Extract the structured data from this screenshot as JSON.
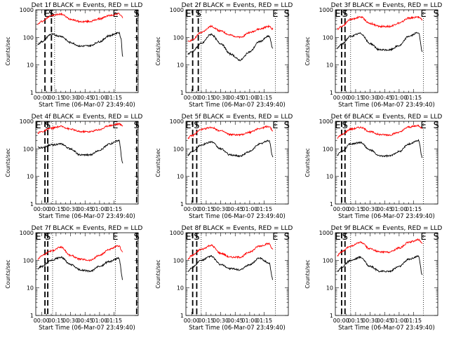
{
  "colors": {
    "events": "#000000",
    "lld": "#ff0000",
    "axis": "#000000"
  },
  "common": {
    "ylabel": "Counts/sec",
    "xlabel": "Start Time (06-Mar-07 23:49:40)",
    "ytick_labels": [
      "1",
      "10",
      "100",
      "1000"
    ],
    "xtick_labels": [
      "00:00",
      "00:15",
      "00:30",
      "00:45",
      "01:00",
      "01:15"
    ],
    "y_scale": "log",
    "ylim": [
      1,
      1000
    ],
    "xlim_minutes_after_2349_40": [
      -6,
      100
    ]
  },
  "chart_data": [
    {
      "type": "line",
      "title": "Det 1f BLACK = Events, RED = LLD",
      "series": [
        {
          "color": "#ff0000",
          "x": [
            -4,
            0,
            10,
            20,
            30,
            40,
            50,
            60,
            70,
            80,
            82,
            84
          ],
          "values": [
            300,
            380,
            620,
            700,
            460,
            370,
            380,
            470,
            620,
            720,
            650,
            500
          ]
        },
        {
          "color": "#000000",
          "x": [
            -4,
            0,
            10,
            20,
            30,
            40,
            50,
            60,
            70,
            80,
            82,
            84
          ],
          "values": [
            55,
            70,
            130,
            110,
            65,
            48,
            50,
            70,
            115,
            150,
            100,
            20
          ]
        }
      ],
      "marker_labels": [
        {
          "text": "E",
          "x": 5.6
        },
        {
          "text": "S",
          "x": 10.2
        },
        {
          "text": "E",
          "x": 76.5
        },
        {
          "text": "S",
          "x": 98.4
        }
      ],
      "dashed_lines_x": [
        3.5,
        10.2,
        98.4
      ],
      "dotted_lines_x": [
        13.5,
        76.5
      ]
    },
    {
      "type": "line",
      "title": "Det 2f BLACK = Events, RED = LLD",
      "series": [
        {
          "color": "#ff0000",
          "x": [
            -4,
            0,
            10,
            20,
            30,
            40,
            50,
            60,
            70,
            80,
            84
          ],
          "values": [
            70,
            80,
            150,
            250,
            170,
            120,
            100,
            150,
            200,
            250,
            200
          ]
        },
        {
          "color": "#000000",
          "x": [
            -4,
            0,
            10,
            20,
            30,
            40,
            50,
            60,
            70,
            80,
            84
          ],
          "values": [
            25,
            30,
            60,
            130,
            60,
            25,
            15,
            30,
            70,
            110,
            40
          ]
        }
      ],
      "marker_labels": [
        {
          "text": "E",
          "x": -3.5
        },
        {
          "text": "S",
          "x": 6.8
        },
        {
          "text": "E",
          "x": 86.5
        },
        {
          "text": "S",
          "x": 98.4
        }
      ],
      "dashed_lines_x": [
        1.0,
        6.8
      ],
      "dotted_lines_x": [
        9.8,
        86.5
      ]
    },
    {
      "type": "line",
      "title": "Det 3f BLACK = Events, RED = LLD",
      "series": [
        {
          "color": "#ff0000",
          "x": [
            -4,
            0,
            10,
            20,
            30,
            40,
            50,
            60,
            70,
            80,
            84
          ],
          "values": [
            200,
            250,
            450,
            550,
            320,
            250,
            250,
            330,
            500,
            550,
            450
          ]
        },
        {
          "color": "#000000",
          "x": [
            -4,
            0,
            10,
            20,
            30,
            40,
            50,
            60,
            70,
            80,
            84
          ],
          "values": [
            40,
            55,
            110,
            140,
            60,
            35,
            35,
            50,
            110,
            150,
            30
          ]
        }
      ],
      "marker_labels": [
        {
          "text": "E",
          "x": -3.5
        },
        {
          "text": "S",
          "x": 4.0
        },
        {
          "text": "E",
          "x": 85.2
        },
        {
          "text": "S",
          "x": 98.4
        }
      ],
      "dashed_lines_x": [
        0.5,
        4.0
      ],
      "dotted_lines_x": [
        9.8,
        85.2
      ]
    },
    {
      "type": "line",
      "title": "Det 4f BLACK = Events, RED = LLD",
      "series": [
        {
          "color": "#ff0000",
          "x": [
            -4,
            0,
            10,
            20,
            30,
            40,
            50,
            60,
            70,
            80,
            84
          ],
          "values": [
            380,
            420,
            560,
            650,
            520,
            420,
            420,
            500,
            700,
            800,
            700
          ]
        },
        {
          "color": "#000000",
          "x": [
            -4,
            0,
            10,
            20,
            30,
            40,
            50,
            60,
            70,
            80,
            84
          ],
          "values": [
            110,
            110,
            140,
            150,
            100,
            60,
            60,
            90,
            150,
            200,
            30
          ]
        }
      ],
      "marker_labels": [
        {
          "text": "E",
          "x": -3.5
        },
        {
          "text": "S",
          "x": 6.4
        },
        {
          "text": "E",
          "x": 76.3
        },
        {
          "text": "S",
          "x": 98.4
        }
      ],
      "dashed_lines_x": [
        3.5,
        6.4,
        98.4
      ],
      "dotted_lines_x": [
        11.4,
        76.3
      ]
    },
    {
      "type": "line",
      "title": "Det 5f BLACK = Events, RED = LLD",
      "series": [
        {
          "color": "#ff0000",
          "x": [
            -4,
            0,
            10,
            20,
            30,
            40,
            50,
            60,
            70,
            80,
            84
          ],
          "values": [
            250,
            300,
            500,
            600,
            450,
            330,
            320,
            400,
            550,
            650,
            450
          ]
        },
        {
          "color": "#000000",
          "x": [
            -4,
            0,
            10,
            20,
            30,
            40,
            50,
            60,
            70,
            80,
            84
          ],
          "values": [
            60,
            80,
            140,
            180,
            100,
            60,
            55,
            80,
            150,
            200,
            50
          ]
        }
      ],
      "marker_labels": [
        {
          "text": "E",
          "x": -3.5
        },
        {
          "text": "S",
          "x": 5.2
        },
        {
          "text": "E",
          "x": 86.5
        },
        {
          "text": "S",
          "x": 98.4
        }
      ],
      "dashed_lines_x": [
        1.0,
        5.2
      ],
      "dotted_lines_x": [
        9.8,
        86.5
      ]
    },
    {
      "type": "line",
      "title": "Det 6f BLACK = Events, RED = LLD",
      "series": [
        {
          "color": "#ff0000",
          "x": [
            -4,
            0,
            10,
            20,
            30,
            40,
            50,
            60,
            70,
            80,
            84
          ],
          "values": [
            250,
            320,
            520,
            600,
            420,
            330,
            320,
            400,
            620,
            700,
            550
          ]
        },
        {
          "color": "#000000",
          "x": [
            -4,
            0,
            10,
            20,
            30,
            40,
            50,
            60,
            70,
            80,
            84
          ],
          "values": [
            60,
            80,
            150,
            170,
            90,
            55,
            55,
            80,
            150,
            200,
            50
          ]
        }
      ],
      "marker_labels": [
        {
          "text": "E",
          "x": -3.5
        },
        {
          "text": "S",
          "x": 4.0
        },
        {
          "text": "E",
          "x": 85.2
        },
        {
          "text": "S",
          "x": 98.4
        }
      ],
      "dashed_lines_x": [
        0.5,
        4.0
      ],
      "dotted_lines_x": [
        9.8,
        85.2
      ]
    },
    {
      "type": "line",
      "title": "Det 7f BLACK = Events, RED = LLD",
      "series": [
        {
          "color": "#ff0000",
          "x": [
            -4,
            0,
            10,
            20,
            30,
            40,
            50,
            60,
            70,
            80,
            84
          ],
          "values": [
            110,
            150,
            220,
            300,
            150,
            110,
            100,
            150,
            250,
            330,
            200
          ]
        },
        {
          "color": "#000000",
          "x": [
            -4,
            0,
            10,
            20,
            30,
            40,
            50,
            60,
            70,
            80,
            84
          ],
          "values": [
            50,
            60,
            100,
            130,
            70,
            45,
            40,
            60,
            90,
            120,
            20
          ]
        }
      ],
      "marker_labels": [
        {
          "text": "E",
          "x": -3.5
        },
        {
          "text": "S",
          "x": 6.4
        },
        {
          "text": "E",
          "x": 76.3
        },
        {
          "text": "S",
          "x": 98.4
        }
      ],
      "dashed_lines_x": [
        3.5,
        6.4,
        98.4
      ],
      "dotted_lines_x": [
        11.4,
        76.3
      ]
    },
    {
      "type": "line",
      "title": "Det 8f BLACK = Events, RED = LLD",
      "series": [
        {
          "color": "#ff0000",
          "x": [
            -4,
            0,
            10,
            20,
            30,
            40,
            50,
            60,
            70,
            80,
            84
          ],
          "values": [
            110,
            150,
            250,
            350,
            180,
            130,
            130,
            200,
            330,
            400,
            250
          ]
        },
        {
          "color": "#000000",
          "x": [
            -4,
            0,
            10,
            20,
            30,
            40,
            50,
            60,
            70,
            80,
            84
          ],
          "values": [
            40,
            55,
            100,
            140,
            70,
            50,
            45,
            70,
            120,
            80,
            20
          ]
        }
      ],
      "marker_labels": [
        {
          "text": "E",
          "x": -3.5
        },
        {
          "text": "S",
          "x": 5.2
        },
        {
          "text": "E",
          "x": 86.5
        },
        {
          "text": "S",
          "x": 98.4
        }
      ],
      "dashed_lines_x": [
        1.0,
        5.2
      ],
      "dotted_lines_x": [
        9.8,
        86.5
      ]
    },
    {
      "type": "line",
      "title": "Det 9f BLACK = Events, RED = LLD",
      "series": [
        {
          "color": "#ff0000",
          "x": [
            -4,
            0,
            10,
            20,
            30,
            40,
            50,
            60,
            70,
            80,
            84
          ],
          "values": [
            150,
            200,
            330,
            450,
            260,
            200,
            200,
            280,
            450,
            560,
            400
          ]
        },
        {
          "color": "#000000",
          "x": [
            -4,
            0,
            10,
            20,
            30,
            40,
            50,
            60,
            70,
            80,
            84
          ],
          "values": [
            40,
            55,
            100,
            130,
            60,
            40,
            40,
            60,
            110,
            140,
            30
          ]
        }
      ],
      "marker_labels": [
        {
          "text": "E",
          "x": -3.5
        },
        {
          "text": "S",
          "x": 4.0
        },
        {
          "text": "E",
          "x": 85.2
        },
        {
          "text": "S",
          "x": 98.4
        }
      ],
      "dashed_lines_x": [
        0.5,
        4.0
      ],
      "dotted_lines_x": [
        9.8,
        85.2
      ]
    }
  ]
}
